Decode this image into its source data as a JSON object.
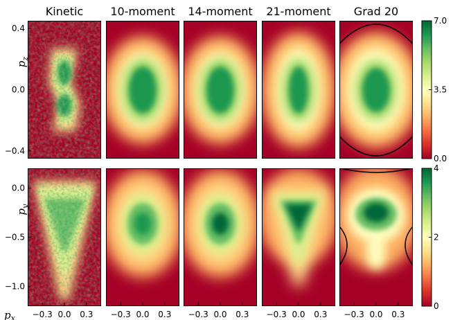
{
  "chart_data": {
    "type": "heatmap",
    "colormap": "RdYlGn",
    "colormap_stops": [
      "#a50026",
      "#d73027",
      "#f46d43",
      "#fdae61",
      "#fee08b",
      "#ffffbf",
      "#d9ef8b",
      "#a6d96a",
      "#66bd63",
      "#1a9850",
      "#006837"
    ],
    "columns": [
      "Kinetic",
      "10-moment",
      "14-moment",
      "21-moment",
      "Grad 20"
    ],
    "x_axis": {
      "label": "p_x",
      "label_text": "px",
      "range": [
        -0.5,
        0.5
      ],
      "ticks": [
        "-0.3",
        "0.0",
        "0.3"
      ]
    },
    "rows": [
      {
        "y_label": "p_z",
        "y_label_text": "pz",
        "y_range": [
          -0.45,
          0.45
        ],
        "y_ticks": [
          "0.4",
          "0.0",
          "-0.4"
        ],
        "y_tick_values": [
          0.4,
          0.0,
          -0.4
        ],
        "colorbar": {
          "range": [
            0,
            7.0
          ],
          "ticks": [
            "7.0",
            "3.5",
            "0.0"
          ]
        }
      },
      {
        "y_label": "p_y",
        "y_label_text": "py",
        "y_range": [
          -1.2,
          0.2
        ],
        "y_ticks": [
          "0.0",
          "-0.5",
          "-1.0"
        ],
        "y_tick_values": [
          0.0,
          -0.5,
          -1.0
        ],
        "colorbar": {
          "range": [
            0,
            4
          ],
          "ticks": [
            "4",
            "2",
            "0"
          ]
        }
      }
    ]
  }
}
